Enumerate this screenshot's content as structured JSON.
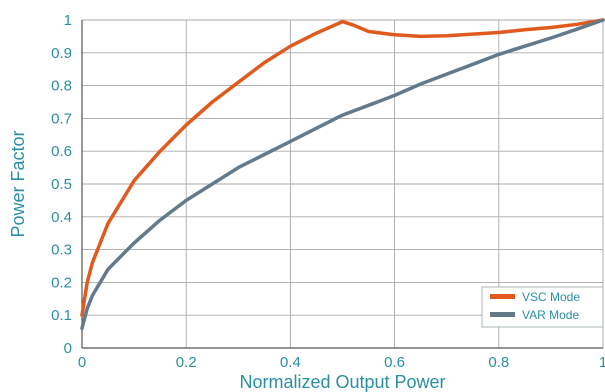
{
  "chart_data": {
    "type": "line",
    "xlabel": "Normalized Output Power",
    "ylabel": "Power Factor",
    "xlim": [
      0,
      1
    ],
    "ylim": [
      0,
      1
    ],
    "x_ticks": [
      "0",
      "0.2",
      "0.4",
      "0.6",
      "0.8",
      "1"
    ],
    "y_ticks": [
      "0",
      "0.1",
      "0.2",
      "0.3",
      "0.4",
      "0.5",
      "0.6",
      "0.7",
      "0.8",
      "0.9",
      "1"
    ],
    "grid": true,
    "legend_position": "bottom-right",
    "series": [
      {
        "name": "VSC Mode",
        "color": "#e05a1e",
        "x": [
          0,
          0.01,
          0.02,
          0.05,
          0.1,
          0.15,
          0.2,
          0.25,
          0.3,
          0.35,
          0.4,
          0.45,
          0.5,
          0.52,
          0.55,
          0.6,
          0.65,
          0.7,
          0.75,
          0.8,
          0.85,
          0.9,
          0.95,
          1.0
        ],
        "y": [
          0.1,
          0.2,
          0.26,
          0.38,
          0.51,
          0.6,
          0.68,
          0.75,
          0.81,
          0.87,
          0.92,
          0.96,
          0.995,
          0.985,
          0.965,
          0.955,
          0.95,
          0.952,
          0.957,
          0.962,
          0.97,
          0.977,
          0.987,
          1.0
        ]
      },
      {
        "name": "VAR Mode",
        "color": "#627a8c",
        "x": [
          0,
          0.01,
          0.02,
          0.05,
          0.1,
          0.15,
          0.2,
          0.25,
          0.3,
          0.35,
          0.4,
          0.45,
          0.5,
          0.55,
          0.6,
          0.65,
          0.7,
          0.75,
          0.8,
          0.85,
          0.9,
          0.95,
          1.0
        ],
        "y": [
          0.06,
          0.12,
          0.16,
          0.24,
          0.32,
          0.39,
          0.45,
          0.5,
          0.55,
          0.59,
          0.63,
          0.67,
          0.71,
          0.74,
          0.77,
          0.805,
          0.835,
          0.865,
          0.895,
          0.92,
          0.945,
          0.972,
          1.0
        ]
      }
    ]
  }
}
